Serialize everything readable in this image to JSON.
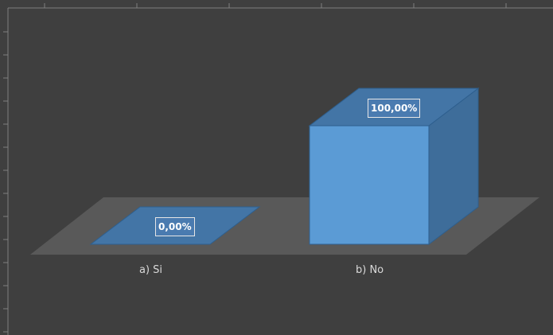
{
  "chart_data": {
    "type": "bar",
    "style": "3d-column",
    "categories": [
      "a) Si",
      "b) No"
    ],
    "values": [
      0,
      100
    ],
    "data_labels": [
      "0,00%",
      "100,00%"
    ],
    "ylim": [
      0,
      100
    ],
    "legend": "none",
    "colors": {
      "background": "#3f3f3f",
      "floor": "#595959",
      "bar_front": "#5b9bd5",
      "bar_top": "#4375a6",
      "bar_side": "#3e6d9a",
      "bar_edge": "#2e5f8e"
    }
  }
}
